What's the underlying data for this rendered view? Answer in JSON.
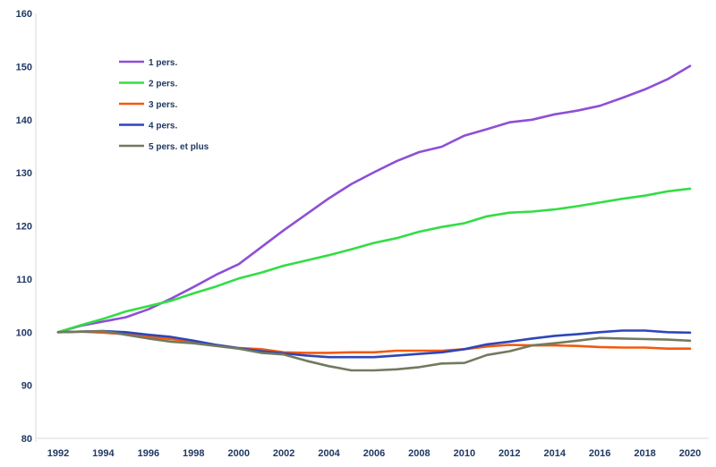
{
  "chart_data": {
    "type": "line",
    "title": "",
    "xlabel": "",
    "ylabel": "",
    "ylim": [
      80,
      160
    ],
    "xlim": [
      1992,
      2020
    ],
    "grid": false,
    "legend_position": "top-left",
    "x_ticks": [
      "1992",
      "1994",
      "1996",
      "1998",
      "2000",
      "2002",
      "2004",
      "2006",
      "2008",
      "2010",
      "2012",
      "2014",
      "2016",
      "2018",
      "2020"
    ],
    "y_ticks": [
      "80",
      "90",
      "100",
      "110",
      "120",
      "130",
      "140",
      "150",
      "160"
    ],
    "x": [
      1992,
      1993,
      1994,
      1995,
      1996,
      1997,
      1998,
      1999,
      2000,
      2001,
      2002,
      2003,
      2004,
      2005,
      2006,
      2007,
      2008,
      2009,
      2010,
      2011,
      2012,
      2013,
      2014,
      2015,
      2016,
      2017,
      2018,
      2019,
      2020
    ],
    "series": [
      {
        "name": "1 pers.",
        "color": "#8e4fd6",
        "values": [
          100,
          101.2,
          102,
          102.8,
          104.3,
          106.3,
          108.5,
          110.8,
          112.8,
          116,
          119.2,
          122.2,
          125.2,
          127.9,
          130.1,
          132.2,
          133.9,
          134.9,
          137,
          138.2,
          139.5,
          140,
          141,
          141.7,
          142.6,
          144.1,
          145.7,
          147.6,
          150.1
        ]
      },
      {
        "name": "2 pers.",
        "color": "#33dd44",
        "values": [
          100,
          101.3,
          102.5,
          103.9,
          104.9,
          105.9,
          107.3,
          108.6,
          110.1,
          111.2,
          112.5,
          113.5,
          114.5,
          115.6,
          116.8,
          117.7,
          118.9,
          119.8,
          120.5,
          121.8,
          122.5,
          122.7,
          123.1,
          123.7,
          124.4,
          125.1,
          125.7,
          126.5,
          127
        ]
      },
      {
        "name": "3 pers.",
        "color": "#f25a0f",
        "values": [
          100,
          100.1,
          99.9,
          99.6,
          99.1,
          98.7,
          98.2,
          97.6,
          97,
          96.8,
          96.2,
          96.1,
          96.1,
          96.2,
          96.2,
          96.5,
          96.5,
          96.5,
          96.8,
          97.3,
          97.6,
          97.5,
          97.5,
          97.4,
          97.2,
          97.1,
          97.1,
          96.9,
          96.9
        ]
      },
      {
        "name": "4 pers.",
        "color": "#2f46b8",
        "values": [
          100,
          100.1,
          100.2,
          100,
          99.5,
          99.1,
          98.4,
          97.6,
          97,
          96.4,
          96,
          95.6,
          95.3,
          95.3,
          95.3,
          95.6,
          95.9,
          96.2,
          96.8,
          97.7,
          98.2,
          98.8,
          99.3,
          99.6,
          100,
          100.3,
          100.3,
          100,
          99.9
        ]
      },
      {
        "name": "5 pers. et plus",
        "color": "#727a5f",
        "values": [
          100,
          100.1,
          100.2,
          99.5,
          98.8,
          98.2,
          97.9,
          97.4,
          96.9,
          96.1,
          95.8,
          94.6,
          93.6,
          92.8,
          92.8,
          93,
          93.4,
          94.1,
          94.2,
          95.7,
          96.4,
          97.5,
          97.9,
          98.4,
          98.9,
          98.8,
          98.7,
          98.6,
          98.4
        ]
      }
    ]
  }
}
